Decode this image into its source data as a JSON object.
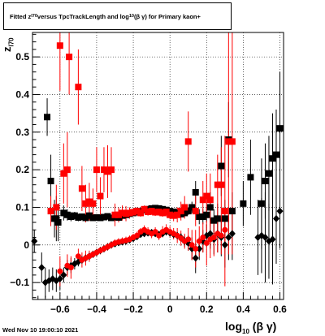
{
  "chart_data": {
    "type": "scatter",
    "title_parts": {
      "pre": "Fitted  z",
      "sub1": "l70",
      "mid": "  versus TpcTrackLength and log",
      "sub2": "10",
      "post": " (β γ) for Primary kaon+"
    },
    "xlabel_parts": {
      "pre": "log",
      "sub": "10",
      "post": " (β γ)"
    },
    "ylabel_parts": {
      "pre": "z",
      "sub": "l70"
    },
    "timestamp": "Wed Nov 10 19:00:10 2021",
    "xlim": [
      -0.75,
      0.62
    ],
    "ylim": [
      -0.145,
      0.565
    ],
    "xticks": [
      -0.6,
      -0.4,
      -0.2,
      0,
      0.2,
      0.4,
      0.6
    ],
    "xtick_labels": [
      "−0.6",
      "−0.4",
      "−0.2",
      "0",
      "0.2",
      "0.4",
      "0.6"
    ],
    "yticks": [
      -0.1,
      0,
      0.1,
      0.2,
      0.3,
      0.4,
      0.5
    ],
    "ytick_labels": [
      "−0.1",
      "0",
      "0.1",
      "0.2",
      "0.3",
      "0.4",
      "0.5"
    ],
    "grid": true,
    "colors": {
      "black": "#000000",
      "red": "#ff0000"
    },
    "series": [
      {
        "marker": "square",
        "color": "#000000",
        "points": [
          [
            -0.67,
            0.34,
            0.05
          ],
          [
            -0.65,
            0.17,
            0.07
          ],
          [
            -0.63,
            0.07,
            0.05
          ],
          [
            -0.62,
            0.07,
            0.06
          ],
          [
            -0.61,
            0.06,
            0.05
          ],
          [
            -0.58,
            0.085,
            0.02
          ],
          [
            -0.56,
            0.08,
            0.015
          ],
          [
            -0.54,
            0.075,
            0.012
          ],
          [
            -0.52,
            0.078,
            0.01
          ],
          [
            -0.5,
            0.073,
            0.01
          ],
          [
            -0.48,
            0.075,
            0.008
          ],
          [
            -0.46,
            0.072,
            0.008
          ],
          [
            -0.44,
            0.078,
            0.007
          ],
          [
            -0.42,
            0.072,
            0.006
          ],
          [
            -0.4,
            0.073,
            0.006
          ],
          [
            -0.38,
            0.072,
            0.006
          ],
          [
            -0.36,
            0.074,
            0.005
          ],
          [
            -0.34,
            0.076,
            0.005
          ],
          [
            -0.32,
            0.072,
            0.005
          ],
          [
            -0.3,
            0.075,
            0.005
          ],
          [
            -0.28,
            0.073,
            0.005
          ],
          [
            -0.26,
            0.078,
            0.005
          ],
          [
            -0.24,
            0.08,
            0.005
          ],
          [
            -0.22,
            0.083,
            0.005
          ],
          [
            -0.2,
            0.085,
            0.005
          ],
          [
            -0.18,
            0.087,
            0.005
          ],
          [
            -0.16,
            0.09,
            0.005
          ],
          [
            -0.14,
            0.093,
            0.005
          ],
          [
            -0.12,
            0.095,
            0.005
          ],
          [
            -0.1,
            0.097,
            0.005
          ],
          [
            -0.08,
            0.098,
            0.005
          ],
          [
            -0.06,
            0.097,
            0.005
          ],
          [
            -0.04,
            0.095,
            0.005
          ],
          [
            -0.02,
            0.093,
            0.006
          ],
          [
            0.0,
            0.09,
            0.006
          ],
          [
            0.02,
            0.088,
            0.007
          ],
          [
            0.04,
            0.085,
            0.007
          ],
          [
            0.06,
            0.082,
            0.008
          ],
          [
            0.08,
            0.085,
            0.009
          ],
          [
            0.1,
            0.09,
            0.01
          ],
          [
            0.12,
            0.1,
            0.015
          ],
          [
            0.14,
            0.14,
            0.03
          ],
          [
            0.16,
            0.075,
            0.02
          ],
          [
            0.18,
            0.075,
            0.02
          ],
          [
            0.2,
            0.08,
            0.02
          ],
          [
            0.22,
            0.1,
            0.04
          ],
          [
            0.24,
            0.065,
            0.03
          ],
          [
            0.26,
            0.07,
            0.04
          ],
          [
            0.28,
            0.21,
            0.08
          ],
          [
            0.3,
            0.07,
            0.05
          ],
          [
            0.32,
            0.28,
            0.1
          ],
          [
            0.34,
            0.09,
            0.05
          ],
          [
            0.4,
            0.11,
            0.06
          ],
          [
            0.44,
            0.18,
            0.1
          ],
          [
            0.5,
            0.11,
            0.12
          ],
          [
            0.52,
            0.17,
            0.1
          ],
          [
            0.54,
            0.19,
            0.1
          ],
          [
            0.56,
            0.23,
            0.12
          ],
          [
            0.58,
            0.24,
            0.12
          ],
          [
            0.6,
            0.31,
            0.15
          ]
        ]
      },
      {
        "marker": "diamond",
        "color": "#000000",
        "points": [
          [
            -0.74,
            0.01,
            0.03
          ],
          [
            -0.7,
            -0.06,
            0.04
          ],
          [
            -0.68,
            -0.1,
            0.04
          ],
          [
            -0.66,
            -0.095,
            0.03
          ],
          [
            -0.64,
            -0.09,
            0.03
          ],
          [
            -0.62,
            -0.095,
            0.03
          ],
          [
            -0.6,
            -0.09,
            0.03
          ],
          [
            -0.58,
            -0.08,
            0.02
          ],
          [
            -0.56,
            -0.06,
            0.02
          ],
          [
            -0.54,
            -0.055,
            0.02
          ],
          [
            -0.52,
            -0.05,
            0.015
          ],
          [
            -0.5,
            -0.045,
            0.012
          ],
          [
            -0.48,
            -0.04,
            0.01
          ],
          [
            -0.46,
            -0.035,
            0.01
          ],
          [
            -0.44,
            -0.03,
            0.008
          ],
          [
            -0.42,
            -0.025,
            0.008
          ],
          [
            -0.4,
            -0.02,
            0.007
          ],
          [
            -0.38,
            -0.015,
            0.006
          ],
          [
            -0.36,
            -0.01,
            0.006
          ],
          [
            -0.34,
            -0.005,
            0.006
          ],
          [
            -0.32,
            0.0,
            0.005
          ],
          [
            -0.3,
            0.003,
            0.005
          ],
          [
            -0.28,
            0.006,
            0.005
          ],
          [
            -0.26,
            0.008,
            0.005
          ],
          [
            -0.24,
            0.01,
            0.005
          ],
          [
            -0.22,
            0.013,
            0.005
          ],
          [
            -0.2,
            0.017,
            0.005
          ],
          [
            -0.18,
            0.022,
            0.005
          ],
          [
            -0.16,
            0.028,
            0.005
          ],
          [
            -0.14,
            0.03,
            0.005
          ],
          [
            -0.12,
            0.032,
            0.006
          ],
          [
            -0.1,
            0.033,
            0.006
          ],
          [
            -0.08,
            0.03,
            0.006
          ],
          [
            -0.06,
            0.028,
            0.006
          ],
          [
            -0.04,
            0.03,
            0.007
          ],
          [
            -0.02,
            0.035,
            0.008
          ],
          [
            0.0,
            0.032,
            0.008
          ],
          [
            0.02,
            0.028,
            0.01
          ],
          [
            0.04,
            0.025,
            0.01
          ],
          [
            0.06,
            0.02,
            0.012
          ],
          [
            0.08,
            0.01,
            0.015
          ],
          [
            0.1,
            0.005,
            0.02
          ],
          [
            0.12,
            -0.01,
            0.03
          ],
          [
            0.14,
            -0.035,
            0.04
          ],
          [
            0.16,
            -0.01,
            0.03
          ],
          [
            0.18,
            0.01,
            0.03
          ],
          [
            0.2,
            0.025,
            0.03
          ],
          [
            0.22,
            0.03,
            0.04
          ],
          [
            0.24,
            0.015,
            0.04
          ],
          [
            0.26,
            0.03,
            0.05
          ],
          [
            0.28,
            0.02,
            0.05
          ],
          [
            0.3,
            0.0,
            0.06
          ],
          [
            0.32,
            0.02,
            0.06
          ],
          [
            0.34,
            0.03,
            0.07
          ],
          [
            0.48,
            0.02,
            0.1
          ],
          [
            0.5,
            0.025,
            0.1
          ],
          [
            0.52,
            0.02,
            0.12
          ],
          [
            0.54,
            0.01,
            0.1
          ],
          [
            0.56,
            0.015,
            0.12
          ],
          [
            0.58,
            0.07,
            0.12
          ],
          [
            0.6,
            0.09,
            0.1
          ]
        ]
      },
      {
        "marker": "square",
        "color": "#ff0000",
        "points": [
          [
            -0.65,
            0.09,
            0.04
          ],
          [
            -0.62,
            0.1,
            0.06
          ],
          [
            -0.6,
            0.53,
            0.12
          ],
          [
            -0.58,
            0.19,
            0.08
          ],
          [
            -0.56,
            0.2,
            0.1
          ],
          [
            -0.55,
            0.5,
            0.1
          ],
          [
            -0.5,
            0.42,
            0.1
          ],
          [
            -0.48,
            0.15,
            0.06
          ],
          [
            -0.46,
            0.11,
            0.05
          ],
          [
            -0.44,
            0.115,
            0.05
          ],
          [
            -0.42,
            0.11,
            0.04
          ],
          [
            -0.4,
            0.2,
            0.06
          ],
          [
            -0.38,
            0.13,
            0.05
          ],
          [
            -0.36,
            0.2,
            0.06
          ],
          [
            -0.34,
            0.195,
            0.07
          ],
          [
            -0.32,
            0.2,
            0.06
          ],
          [
            -0.3,
            0.08,
            0.03
          ],
          [
            -0.28,
            0.08,
            0.02
          ],
          [
            -0.26,
            0.085,
            0.02
          ],
          [
            -0.24,
            0.083,
            0.02
          ],
          [
            -0.22,
            0.085,
            0.015
          ],
          [
            -0.2,
            0.087,
            0.01
          ],
          [
            -0.18,
            0.09,
            0.01
          ],
          [
            -0.16,
            0.085,
            0.01
          ],
          [
            -0.14,
            0.095,
            0.01
          ],
          [
            -0.12,
            0.088,
            0.01
          ],
          [
            -0.1,
            0.09,
            0.01
          ],
          [
            -0.08,
            0.087,
            0.01
          ],
          [
            -0.06,
            0.088,
            0.01
          ],
          [
            -0.04,
            0.085,
            0.01
          ],
          [
            -0.02,
            0.088,
            0.012
          ],
          [
            0.0,
            0.08,
            0.012
          ],
          [
            0.02,
            0.078,
            0.015
          ],
          [
            0.04,
            0.08,
            0.02
          ],
          [
            0.06,
            0.09,
            0.025
          ],
          [
            0.08,
            0.1,
            0.03
          ],
          [
            0.1,
            0.275,
            0.08
          ],
          [
            0.14,
            0.09,
            0.04
          ],
          [
            0.18,
            0.12,
            0.05
          ],
          [
            0.2,
            0.13,
            0.06
          ],
          [
            0.22,
            0.12,
            0.07
          ],
          [
            0.26,
            0.16,
            0.08
          ],
          [
            0.28,
            0.16,
            0.1
          ],
          [
            0.3,
            0.09,
            0.2
          ],
          [
            0.32,
            0.275,
            0.3
          ],
          [
            0.34,
            0.275,
            0.3
          ]
        ]
      },
      {
        "marker": "circle",
        "color": "#ff0000",
        "points": [
          [
            -0.6,
            -0.07,
            0.04
          ],
          [
            -0.56,
            -0.055,
            0.03
          ],
          [
            -0.54,
            -0.06,
            0.03
          ],
          [
            -0.5,
            -0.03,
            0.02
          ],
          [
            -0.48,
            -0.04,
            0.02
          ],
          [
            -0.46,
            -0.035,
            0.02
          ],
          [
            -0.44,
            -0.03,
            0.015
          ],
          [
            -0.42,
            -0.025,
            0.01
          ],
          [
            -0.4,
            -0.02,
            0.01
          ],
          [
            -0.38,
            -0.015,
            0.01
          ],
          [
            -0.36,
            -0.01,
            0.01
          ],
          [
            -0.34,
            -0.005,
            0.01
          ],
          [
            -0.32,
            0.0,
            0.01
          ],
          [
            -0.3,
            0.005,
            0.01
          ],
          [
            -0.28,
            0.008,
            0.01
          ],
          [
            -0.26,
            0.01,
            0.01
          ],
          [
            -0.24,
            0.012,
            0.01
          ],
          [
            -0.22,
            0.015,
            0.01
          ],
          [
            -0.2,
            0.02,
            0.01
          ],
          [
            -0.18,
            0.025,
            0.01
          ],
          [
            -0.16,
            0.035,
            0.01
          ],
          [
            -0.14,
            0.04,
            0.012
          ],
          [
            -0.12,
            0.035,
            0.012
          ],
          [
            -0.1,
            0.03,
            0.012
          ],
          [
            -0.08,
            0.035,
            0.012
          ],
          [
            -0.06,
            0.025,
            0.012
          ],
          [
            -0.04,
            0.035,
            0.015
          ],
          [
            -0.02,
            0.04,
            0.015
          ],
          [
            0.0,
            0.035,
            0.015
          ],
          [
            0.02,
            0.03,
            0.015
          ],
          [
            0.04,
            0.025,
            0.02
          ],
          [
            0.06,
            0.018,
            0.02
          ],
          [
            0.08,
            0.01,
            0.02
          ],
          [
            0.1,
            0.015,
            0.03
          ],
          [
            0.12,
            0.0,
            0.04
          ],
          [
            0.14,
            -0.01,
            0.05
          ],
          [
            0.16,
            0.01,
            0.04
          ],
          [
            0.18,
            0.02,
            0.04
          ],
          [
            0.2,
            0.005,
            0.06
          ],
          [
            0.22,
            0.015,
            0.05
          ],
          [
            0.24,
            0.02,
            0.05
          ],
          [
            0.26,
            0.03,
            0.05
          ],
          [
            0.28,
            0.025,
            0.05
          ],
          [
            0.3,
            0.04,
            0.05
          ]
        ]
      }
    ]
  }
}
